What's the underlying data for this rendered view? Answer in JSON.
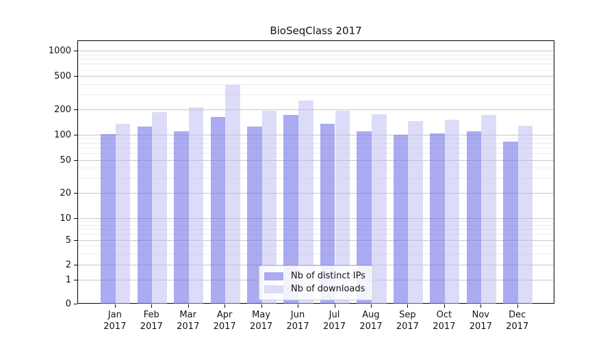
{
  "chart_data": {
    "type": "bar",
    "title": "BioSeqClass 2017",
    "categories": [
      "Jan",
      "Feb",
      "Mar",
      "Apr",
      "May",
      "Jun",
      "Jul",
      "Aug",
      "Sep",
      "Oct",
      "Nov",
      "Dec"
    ],
    "category_year": "2017",
    "series": [
      {
        "name": "Nb of distinct IPs",
        "swatch_color": "#ababf2",
        "bar_fill": "rgba(115,115,233,0.6)",
        "values": [
          102,
          125,
          110,
          163,
          125,
          173,
          135,
          110,
          100,
          103,
          109,
          82
        ]
      },
      {
        "name": "Nb of downloads",
        "swatch_color": "#dcdcf8",
        "bar_fill": "rgba(185,185,241,0.5)",
        "values": [
          134,
          184,
          212,
          390,
          191,
          256,
          192,
          176,
          146,
          150,
          171,
          128
        ]
      }
    ],
    "yscale": "symlog",
    "ylim": [
      0,
      1000
    ],
    "y_ticks": [
      0,
      1,
      2,
      5,
      10,
      20,
      50,
      100,
      200,
      500,
      1000
    ],
    "y_minor_ticks": [
      3,
      4,
      6,
      7,
      8,
      9,
      30,
      40,
      60,
      70,
      80,
      90,
      300,
      400,
      600,
      700,
      800,
      900
    ],
    "grid": true,
    "grid_major_color": "#c6c6c6",
    "grid_minor_color": "#ececec",
    "legend_position": "lower center"
  }
}
